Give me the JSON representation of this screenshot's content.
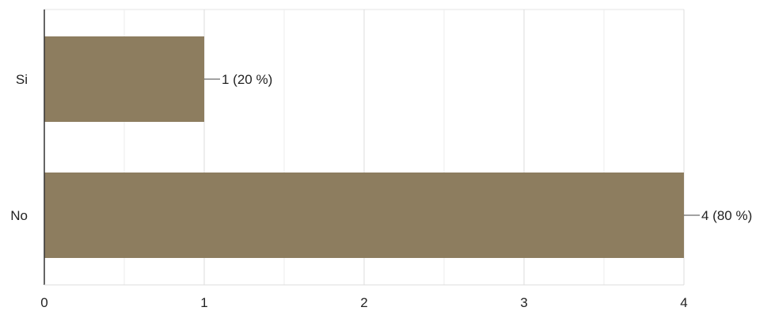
{
  "chart_data": {
    "type": "bar",
    "orientation": "horizontal",
    "categories": [
      "Si",
      "No"
    ],
    "values": [
      1,
      4
    ],
    "data_labels": [
      "1 (20 %)",
      "4 (80 %)"
    ],
    "xlim": [
      0,
      4
    ],
    "x_ticks": [
      "0",
      "1",
      "2",
      "3",
      "4"
    ],
    "grid": true,
    "bar_color": "#8d7d5f",
    "title": "",
    "xlabel": "",
    "ylabel": ""
  }
}
